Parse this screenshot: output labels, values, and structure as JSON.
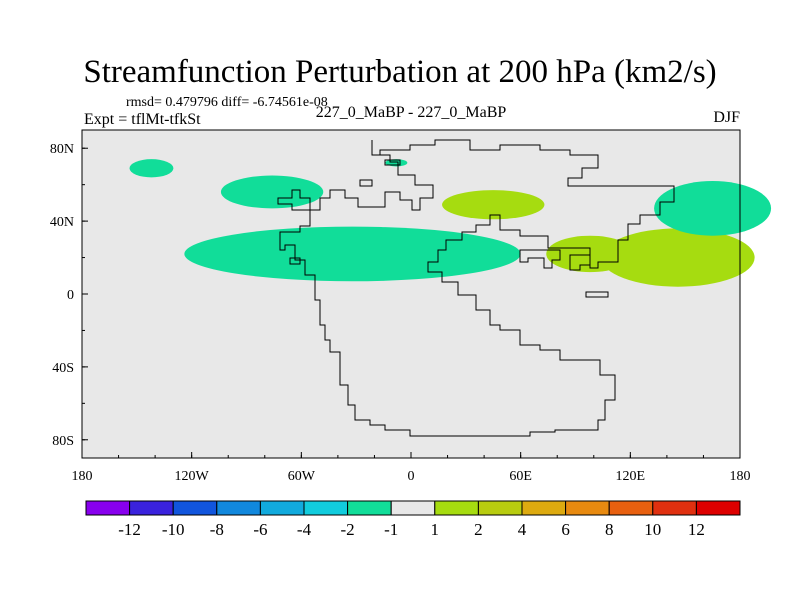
{
  "chart_data": {
    "type": "contour-map",
    "title": "Streamfunction Perturbation at 200 hPa (km2/s)",
    "stats_line": "rmsd= 0.479796 diff= -6.74561e-08",
    "left_label": "Expt = tflMt-tfkSt",
    "center_label": "227_0_MaBP - 227_0_MaBP",
    "right_label": "DJF",
    "xlim": [
      -180,
      180
    ],
    "ylim": [
      -90,
      90
    ],
    "x_ticks": [
      {
        "value": -180,
        "label": "180"
      },
      {
        "value": -120,
        "label": "120W"
      },
      {
        "value": -60,
        "label": "60W"
      },
      {
        "value": 0,
        "label": "0"
      },
      {
        "value": 60,
        "label": "60E"
      },
      {
        "value": 120,
        "label": "120E"
      },
      {
        "value": 180,
        "label": "180"
      }
    ],
    "y_ticks": [
      {
        "value": 80,
        "label": "80N"
      },
      {
        "value": 40,
        "label": "40N"
      },
      {
        "value": 0,
        "label": "0"
      },
      {
        "value": -40,
        "label": "40S"
      },
      {
        "value": -80,
        "label": "80S"
      }
    ],
    "colorbar": {
      "colors": [
        "#8800ee",
        "#3a22dd",
        "#1155dd",
        "#1188dd",
        "#11aadd",
        "#11ccdd",
        "#11dd99",
        "#e8e8e8",
        "#a6dc10",
        "#b8cc10",
        "#ddaa10",
        "#e88a10",
        "#e86010",
        "#e03010",
        "#dd0000"
      ],
      "labels": [
        "-12",
        "-10",
        "-8",
        "-6",
        "-4",
        "-2",
        "-1",
        "1",
        "2",
        "4",
        "6",
        "8",
        "10",
        "12"
      ]
    },
    "anomalies": [
      {
        "name": "eastern-pacific-negative-a",
        "sign": "negative",
        "lon": -142,
        "lat": 69,
        "w": 12,
        "h": 5
      },
      {
        "name": "north-atlantic-negative",
        "sign": "negative",
        "lon": -76,
        "lat": 56,
        "w": 28,
        "h": 9
      },
      {
        "name": "eurasia-tiny-negative",
        "sign": "negative",
        "lon": -8,
        "lat": 72,
        "w": 6,
        "h": 2
      },
      {
        "name": "subtropical-atlantic-negative",
        "sign": "negative",
        "lon": -32,
        "lat": 22,
        "w": 92,
        "h": 15
      },
      {
        "name": "north-africa-positive",
        "sign": "positive",
        "lon": 45,
        "lat": 49,
        "w": 28,
        "h": 8
      },
      {
        "name": "india-positive",
        "sign": "positive",
        "lon": 98,
        "lat": 22,
        "w": 24,
        "h": 10
      },
      {
        "name": "west-pacific-positive",
        "sign": "positive",
        "lon": 146,
        "lat": 20,
        "w": 42,
        "h": 16
      },
      {
        "name": "north-pacific-negative",
        "sign": "negative",
        "lon": 165,
        "lat": 47,
        "w": 32,
        "h": 15
      }
    ]
  }
}
